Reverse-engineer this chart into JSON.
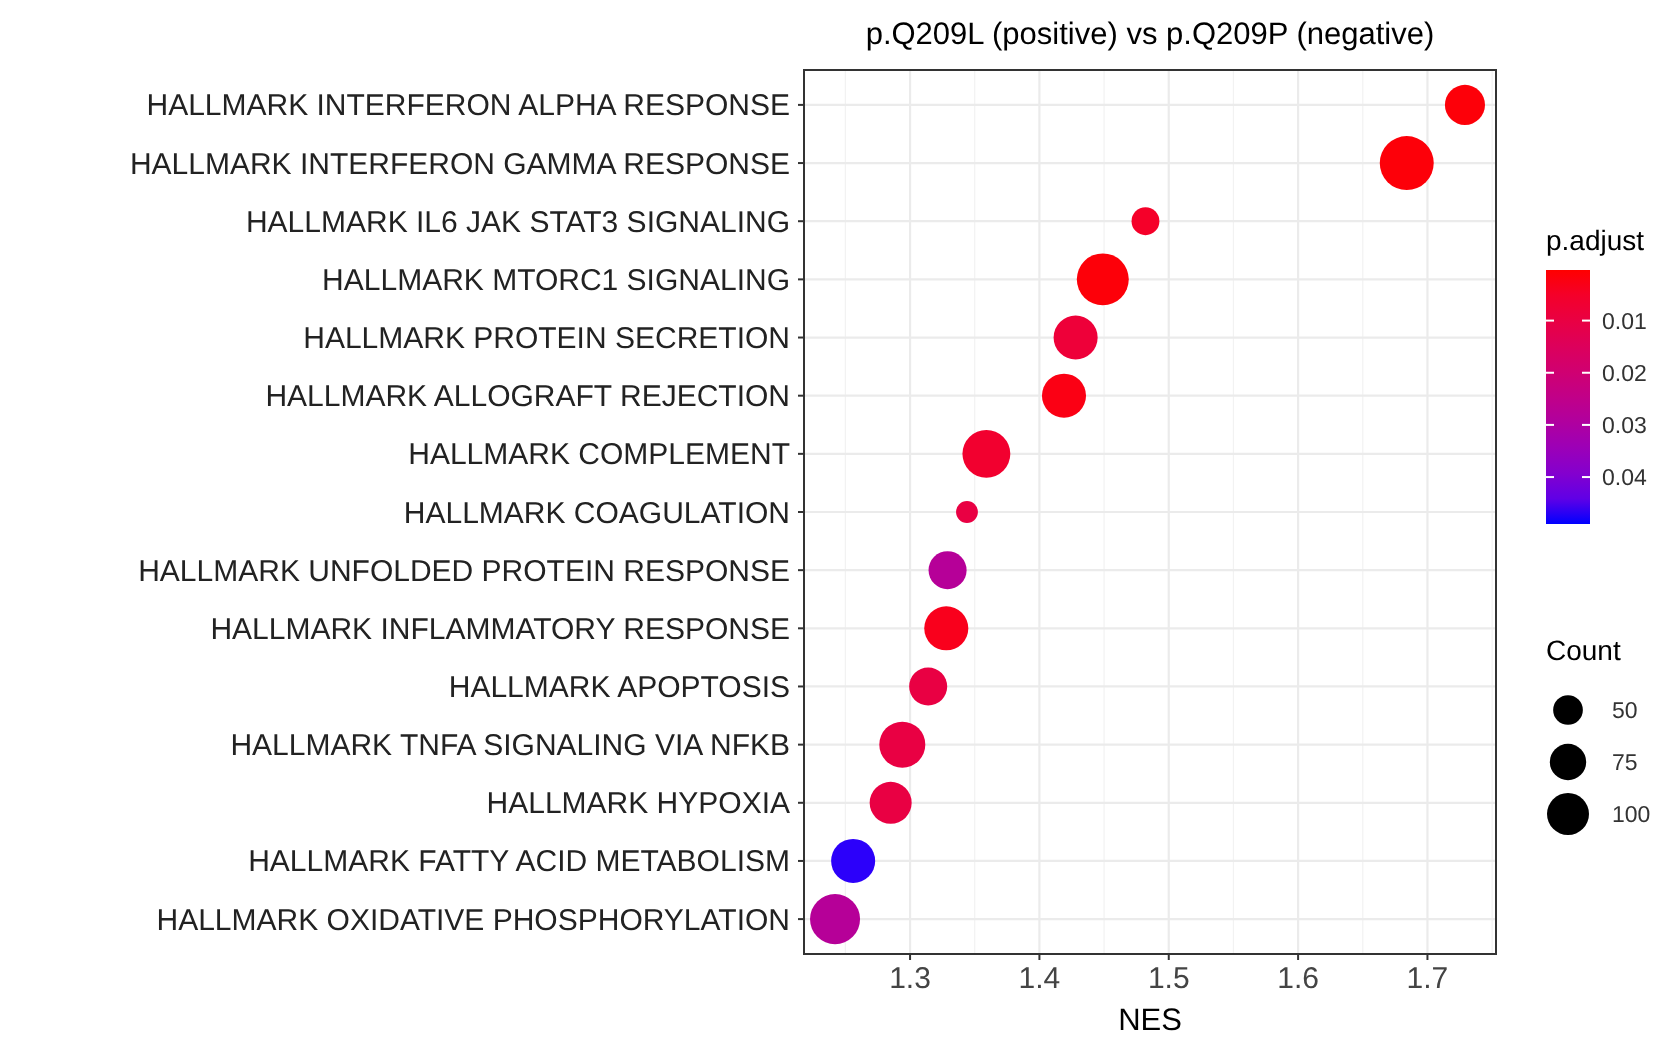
{
  "chart_data": {
    "type": "bubble",
    "title": "p.Q209L (positive) vs p.Q209P (negative)",
    "xlabel": "NES",
    "orientation": "horizontal",
    "categories": [
      "HALLMARK INTERFERON ALPHA RESPONSE",
      "HALLMARK INTERFERON GAMMA RESPONSE",
      "HALLMARK IL6 JAK STAT3 SIGNALING",
      "HALLMARK MTORC1 SIGNALING",
      "HALLMARK PROTEIN SECRETION",
      "HALLMARK ALLOGRAFT REJECTION",
      "HALLMARK COMPLEMENT",
      "HALLMARK COAGULATION",
      "HALLMARK UNFOLDED PROTEIN RESPONSE",
      "HALLMARK INFLAMMATORY RESPONSE",
      "HALLMARK APOPTOSIS",
      "HALLMARK TNFA SIGNALING VIA NFKB",
      "HALLMARK HYPOXIA",
      "HALLMARK FATTY ACID METABOLISM",
      "HALLMARK OXIDATIVE PHOSPHORYLATION"
    ],
    "values": [
      1.729,
      1.684,
      1.482,
      1.449,
      1.428,
      1.419,
      1.359,
      1.344,
      1.329,
      1.328,
      1.314,
      1.294,
      1.285,
      1.256,
      1.242
    ],
    "sizes": [
      91,
      165,
      44,
      153,
      110,
      110,
      130,
      27,
      82,
      110,
      82,
      120,
      100,
      110,
      142
    ],
    "cvalues": [
      0.001,
      0.001,
      0.005,
      0.001,
      0.008,
      0.002,
      0.006,
      0.01,
      0.028,
      0.003,
      0.01,
      0.01,
      0.01,
      0.048,
      0.028
    ],
    "xlim": [
      1.218,
      1.753
    ],
    "xticks": [
      1.3,
      1.4,
      1.5,
      1.6,
      1.7
    ],
    "clabel": "p.adjust",
    "clim": [
      0.0003,
      0.049
    ],
    "cticks": [
      0.01,
      0.02,
      0.03,
      0.04
    ],
    "legend_title": "Count",
    "size_legend": [
      50,
      75,
      100
    ],
    "grid": true
  }
}
